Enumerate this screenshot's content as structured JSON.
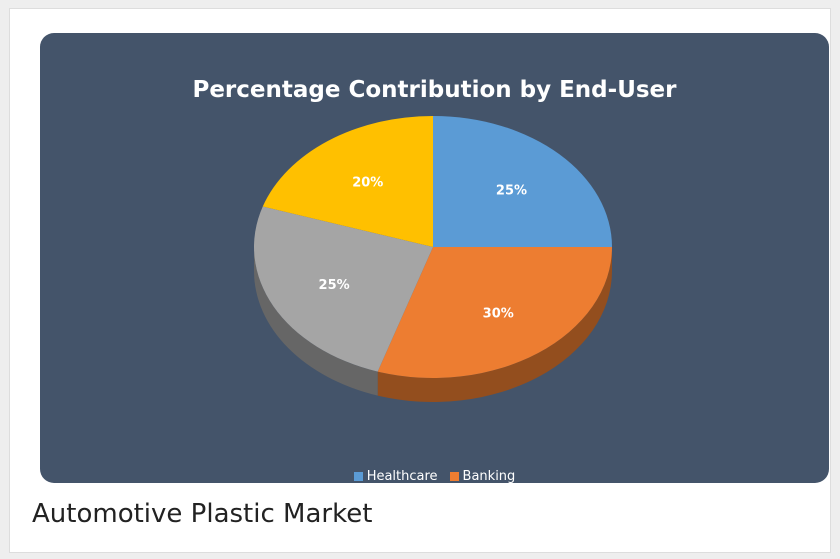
{
  "caption": "Automotive Plastic Market",
  "chart_data": {
    "type": "pie",
    "title": "Percentage Contribution by End-User",
    "slices": [
      {
        "legend_label": "Healthcare",
        "value": 25,
        "label": "25%",
        "color": "#5b9bd5"
      },
      {
        "legend_label": "Banking",
        "value": 30,
        "label": "30%",
        "color": "#ed7d31"
      },
      {
        "legend_label": "",
        "value": 25,
        "label": "25%",
        "color": "#a5a5a5"
      },
      {
        "legend_label": "",
        "value": 20,
        "label": "20%",
        "color": "#ffc000"
      }
    ],
    "legend": [
      "Healthcare",
      "Banking"
    ],
    "legend_position": "bottom",
    "style": "3d"
  }
}
